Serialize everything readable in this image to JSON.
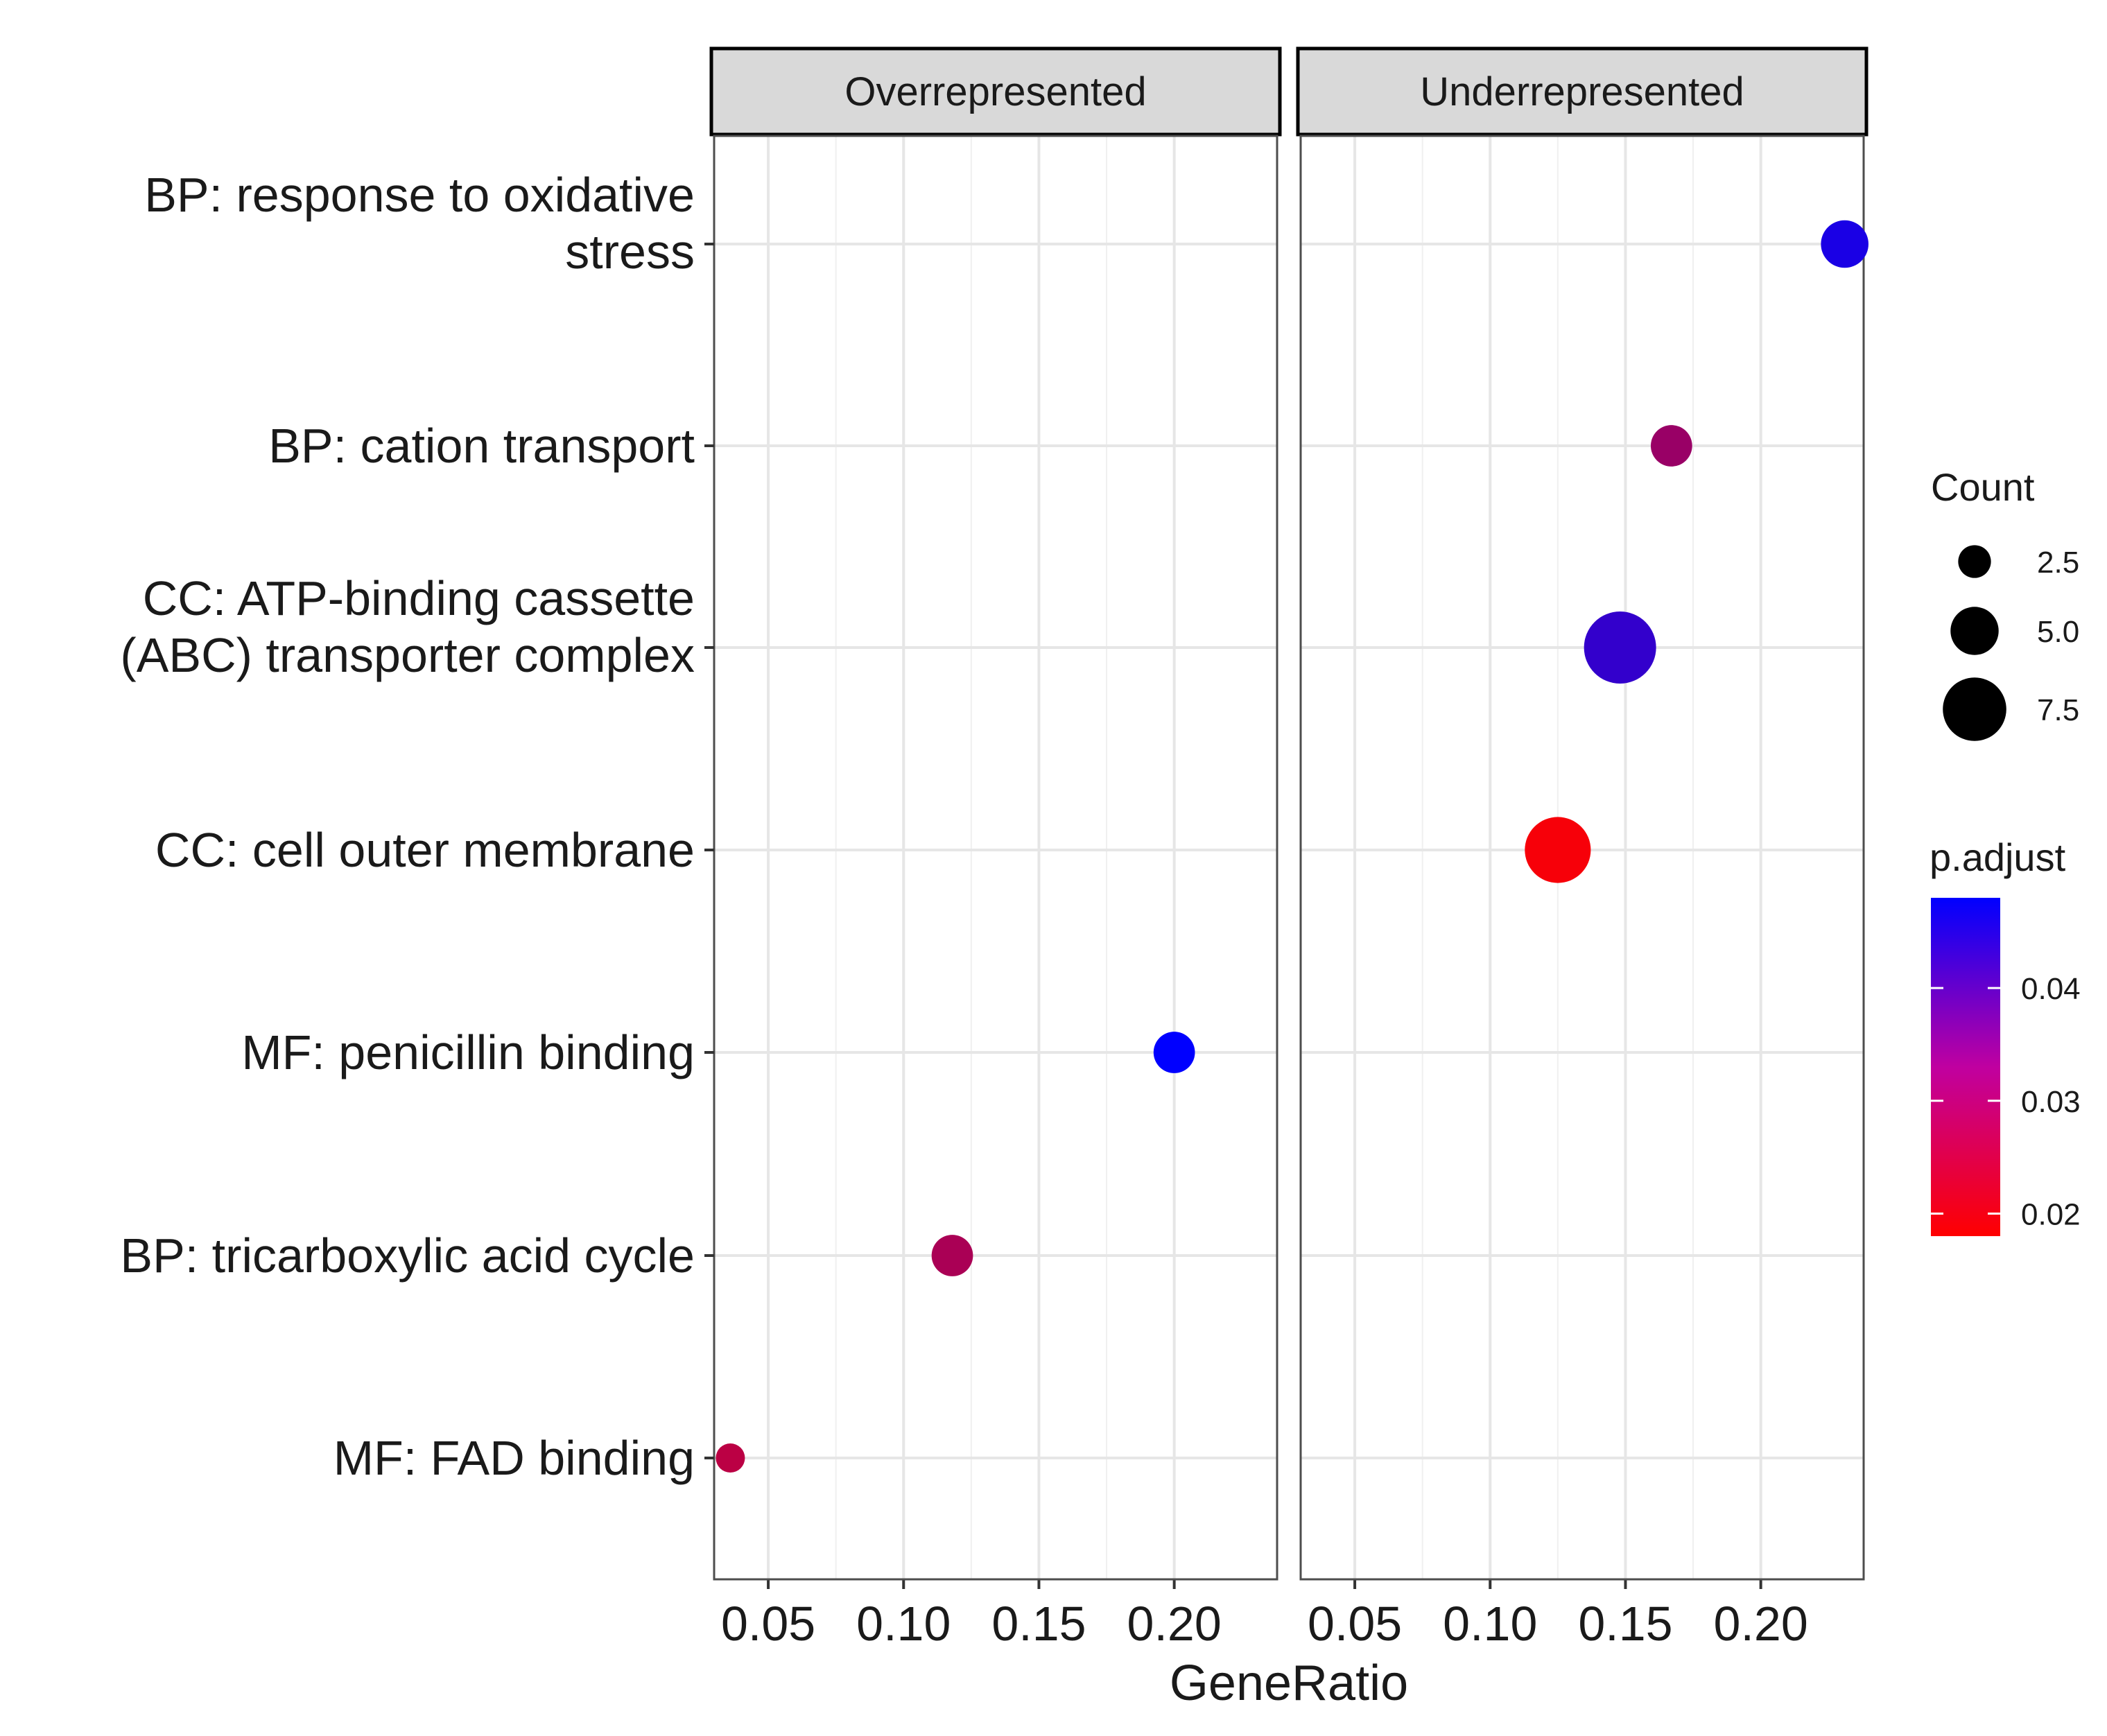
{
  "chart_data": {
    "type": "scatter",
    "subtype": "dotplot-faceted",
    "xlabel": "GeneRatio",
    "ylabel": "",
    "xlim": [
      0.03,
      0.238
    ],
    "x_ticks": [
      0.05,
      0.1,
      0.15,
      0.2
    ],
    "x_tick_labels": [
      "0.05",
      "0.10",
      "0.15",
      "0.20"
    ],
    "grid": true,
    "facets": [
      "Overrepresented",
      "Underrepresented"
    ],
    "categories": [
      [
        "BP: response to oxidative",
        "stress"
      ],
      [
        "BP: cation transport"
      ],
      [
        "CC: ATP-binding cassette",
        "(ABC) transporter complex"
      ],
      [
        "CC: cell outer membrane"
      ],
      [
        "MF: penicillin binding"
      ],
      [
        "BP: tricarboxylic acid cycle"
      ],
      [
        "MF: FAD binding"
      ]
    ],
    "points": [
      {
        "facet": "Underrepresented",
        "category_index": 0,
        "x": 0.231,
        "count": 4,
        "p_adjust": 0.045
      },
      {
        "facet": "Underrepresented",
        "category_index": 1,
        "x": 0.167,
        "count": 3,
        "p_adjust": 0.03
      },
      {
        "facet": "Underrepresented",
        "category_index": 2,
        "x": 0.148,
        "count": 8,
        "p_adjust": 0.042
      },
      {
        "facet": "Underrepresented",
        "category_index": 3,
        "x": 0.125,
        "count": 7,
        "p_adjust": 0.019
      },
      {
        "facet": "Overrepresented",
        "category_index": 4,
        "x": 0.2,
        "count": 3,
        "p_adjust": 0.048
      },
      {
        "facet": "Overrepresented",
        "category_index": 5,
        "x": 0.118,
        "count": 3,
        "p_adjust": 0.028
      },
      {
        "facet": "Overrepresented",
        "category_index": 6,
        "x": 0.036,
        "count": 1,
        "p_adjust": 0.026
      }
    ],
    "legend_size": {
      "title": "Count",
      "values": [
        2.5,
        5.0,
        7.5
      ],
      "labels": [
        "2.5",
        "5.0",
        "7.5"
      ],
      "size_range_counts": [
        1,
        8
      ]
    },
    "legend_color": {
      "title": "p.adjust",
      "domain": [
        0.018,
        0.048
      ],
      "ticks": [
        0.02,
        0.03,
        0.04
      ],
      "tick_labels": [
        "0.02",
        "0.03",
        "0.04"
      ],
      "low_color": "#ff0000",
      "high_color": "#0000ff"
    }
  }
}
